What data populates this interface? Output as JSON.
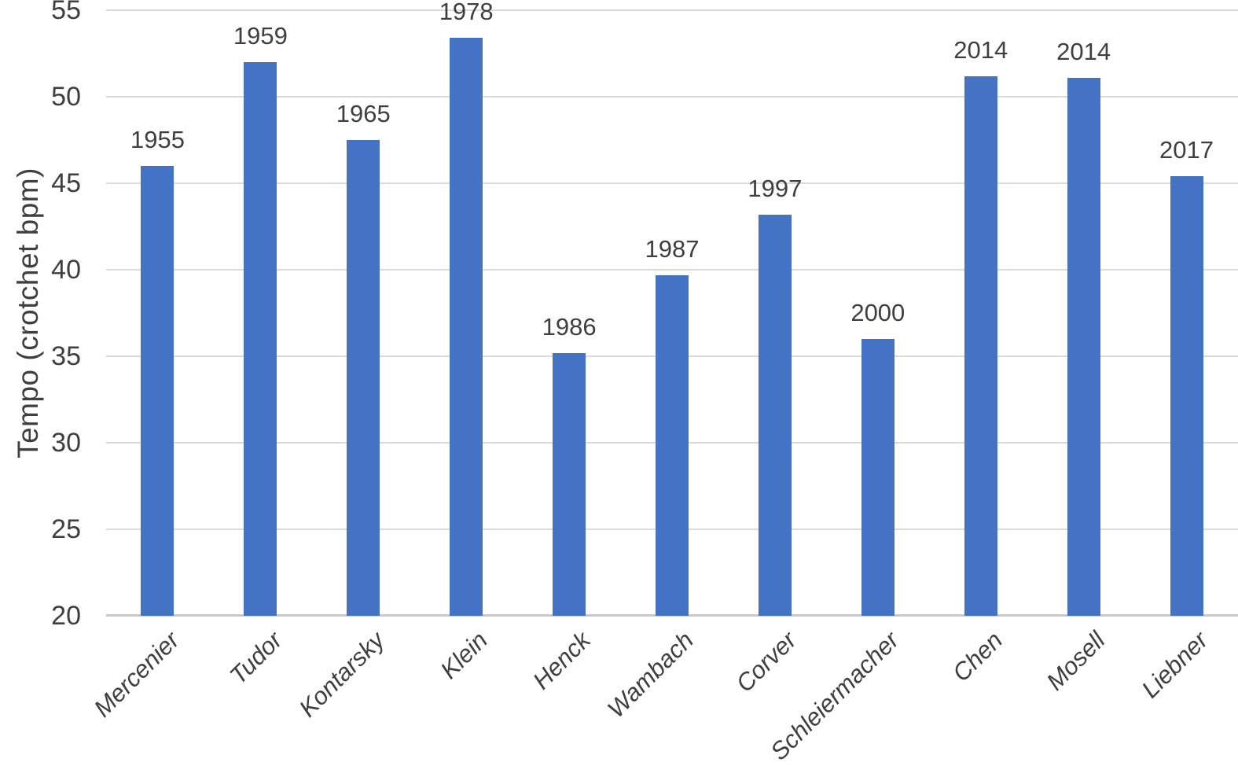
{
  "chart_data": {
    "type": "bar",
    "title": "",
    "xlabel": "",
    "ylabel": "Tempo (crotchet bpm)",
    "categories": [
      "Mercenier",
      "Tudor",
      "Kontarsky",
      "Klein",
      "Henck",
      "Wambach",
      "Corver",
      "Schleiermacher",
      "Chen",
      "Mosell",
      "Liebner"
    ],
    "values": [
      46,
      52,
      47.5,
      53.4,
      35.2,
      39.7,
      43.2,
      36,
      51.2,
      51.1,
      45.4
    ],
    "bar_labels": [
      "1955",
      "1959",
      "1965",
      "1978",
      "1986",
      "1987",
      "1997",
      "2000",
      "2014",
      "2014",
      "2017"
    ],
    "ylim": [
      20,
      55
    ],
    "yticks": [
      20,
      25,
      30,
      35,
      40,
      45,
      50,
      55
    ],
    "grid": true,
    "legend": false,
    "bar_color": "#4472C4",
    "gridline_color": "#DBDBDB",
    "axis_line_color": "#C9C9C9",
    "text_color": "#3F3F3F"
  }
}
